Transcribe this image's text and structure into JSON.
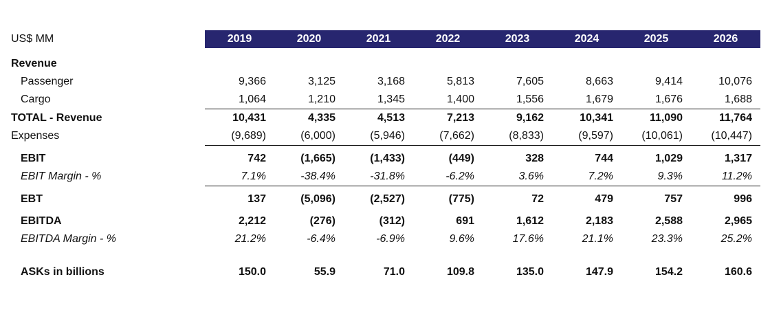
{
  "header": {
    "units": "US$ MM",
    "years": [
      "2019",
      "2020",
      "2021",
      "2022",
      "2023",
      "2024",
      "2025",
      "2026"
    ]
  },
  "rows": {
    "revenue_heading": "Revenue",
    "passenger": {
      "label": "Passenger",
      "values": [
        "9,366",
        "3,125",
        "3,168",
        "5,813",
        "7,605",
        "8,663",
        "9,414",
        "10,076"
      ]
    },
    "cargo": {
      "label": "Cargo",
      "values": [
        "1,064",
        "1,210",
        "1,345",
        "1,400",
        "1,556",
        "1,679",
        "1,676",
        "1,688"
      ]
    },
    "total_revenue": {
      "label": "TOTAL - Revenue",
      "values": [
        "10,431",
        "4,335",
        "4,513",
        "7,213",
        "9,162",
        "10,341",
        "11,090",
        "11,764"
      ]
    },
    "expenses": {
      "label": "Expenses",
      "values": [
        "(9,689)",
        "(6,000)",
        "(5,946)",
        "(7,662)",
        "(8,833)",
        "(9,597)",
        "(10,061)",
        "(10,447)"
      ]
    },
    "ebit": {
      "label": "EBIT",
      "values": [
        "742",
        "(1,665)",
        "(1,433)",
        "(449)",
        "328",
        "744",
        "1,029",
        "1,317"
      ]
    },
    "ebit_margin": {
      "label": "EBIT Margin - %",
      "values": [
        "7.1%",
        "-38.4%",
        "-31.8%",
        "-6.2%",
        "3.6%",
        "7.2%",
        "9.3%",
        "11.2%"
      ]
    },
    "ebt": {
      "label": "EBT",
      "values": [
        "137",
        "(5,096)",
        "(2,527)",
        "(775)",
        "72",
        "479",
        "757",
        "996"
      ]
    },
    "ebitda": {
      "label": "EBITDA",
      "values": [
        "2,212",
        "(276)",
        "(312)",
        "691",
        "1,612",
        "2,183",
        "2,588",
        "2,965"
      ]
    },
    "ebitda_margin": {
      "label": "EBITDA Margin - %",
      "values": [
        "21.2%",
        "-6.4%",
        "-6.9%",
        "9.6%",
        "17.6%",
        "21.1%",
        "23.3%",
        "25.2%"
      ]
    },
    "asks": {
      "label": "ASKs in billions",
      "values": [
        "150.0",
        "55.9",
        "71.0",
        "109.8",
        "135.0",
        "147.9",
        "154.2",
        "160.6"
      ]
    }
  },
  "colors": {
    "header_background": "#27266f",
    "header_text": "#ffffff"
  }
}
